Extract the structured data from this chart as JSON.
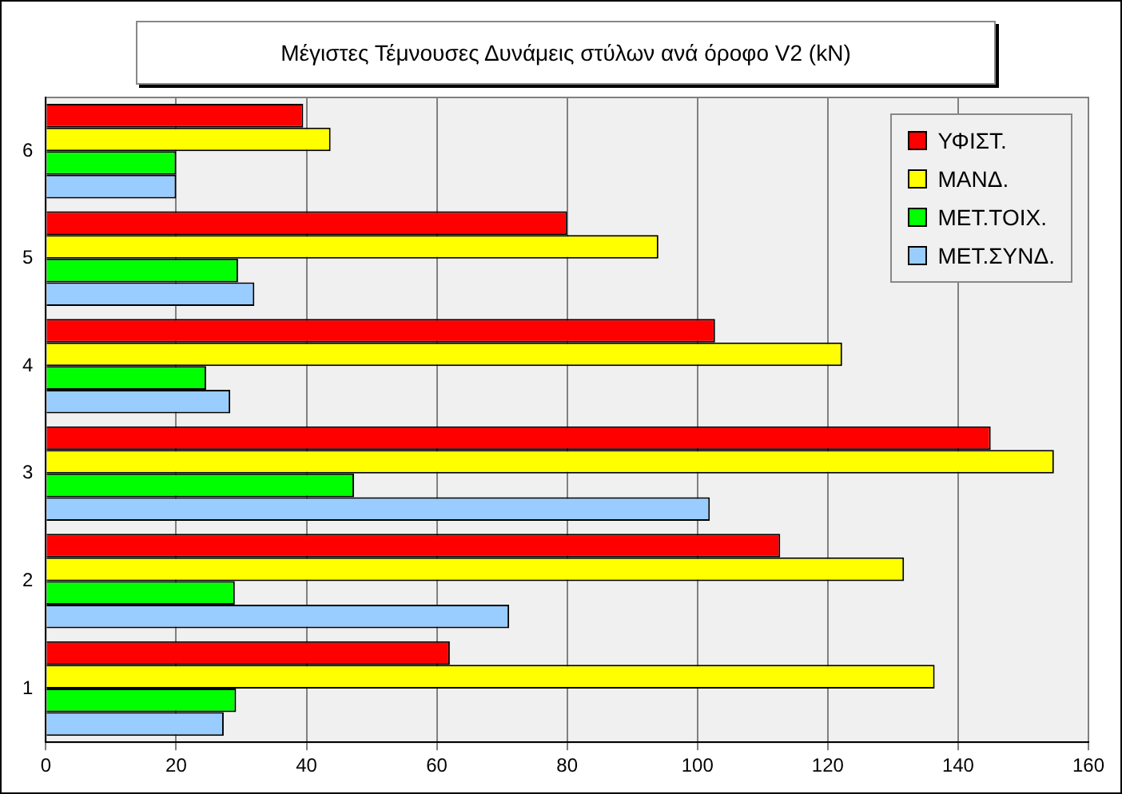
{
  "chart_data": {
    "type": "bar",
    "orientation": "horizontal",
    "title": "Μέγιστες Τέμνουσες Δυνάμεις στύλων ανά όροφο V2 (kN)",
    "categories": [
      "6",
      "5",
      "4",
      "3",
      "2",
      "1"
    ],
    "series": [
      {
        "name": "ΥΦΙΣΤ.",
        "color": "#ff0000",
        "values": [
          39.5,
          80,
          102.7,
          145,
          112.7,
          62
        ]
      },
      {
        "name": "ΜΑΝΔ.",
        "color": "#ffff00",
        "values": [
          43.7,
          94,
          122.2,
          154.7,
          131.7,
          136.4
        ]
      },
      {
        "name": "ΜΕΤ.ΤΟΙΧ.",
        "color": "#00ff00",
        "values": [
          20,
          29.5,
          24.6,
          47.3,
          29,
          29.2
        ]
      },
      {
        "name": "ΜΕΤ.ΣΥΝΔ.",
        "color": "#99ccff",
        "values": [
          20,
          32,
          28.3,
          101.9,
          71.1,
          27.3
        ]
      }
    ],
    "xlim": [
      0,
      160
    ],
    "xticks": [
      0,
      20,
      40,
      60,
      80,
      100,
      120,
      140,
      160
    ],
    "grid": "x",
    "legend": "top right"
  }
}
